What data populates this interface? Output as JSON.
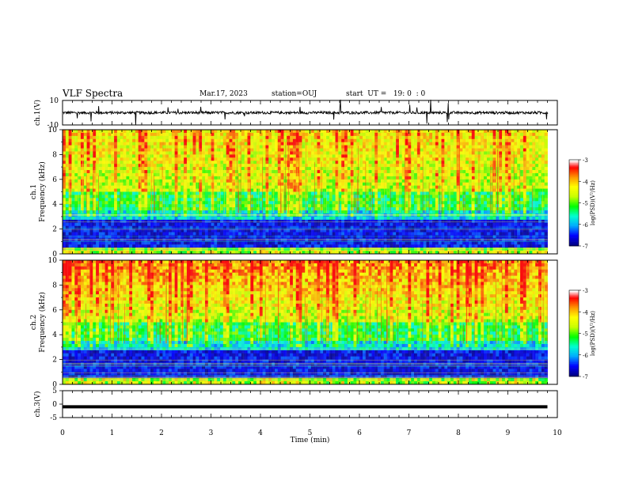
{
  "header": {
    "title": "VLF Spectra",
    "date": "Mar.17, 2023",
    "station": "station=OUJ",
    "start_ut": "start  UT =   19: 0  : 0"
  },
  "chart_data": [
    {
      "type": "line",
      "ylabel": "ch.1(V)",
      "ylim": [
        -10,
        10
      ],
      "yticks": [
        "10",
        "-10"
      ],
      "xlim": [
        0,
        10
      ],
      "baseline": 0,
      "color": "#000000"
    },
    {
      "type": "heatmap",
      "ylabel": "ch.1\nFrequency (kHz)",
      "ylabel_lines": [
        "ch.1",
        "Frequency (kHz)"
      ],
      "ylim": [
        0,
        10
      ],
      "yticks": [
        "0",
        "2",
        "4",
        "6",
        "8",
        "10"
      ],
      "xlim": [
        0,
        9.8
      ],
      "colorbar": {
        "label": "log(PSD)(V²/Hz)",
        "range": [
          -7,
          -3
        ],
        "ticks": [
          "-3",
          "-4",
          "-5",
          "-6",
          "-7"
        ],
        "colors": [
          "#000080",
          "#0000ff",
          "#00aaff",
          "#00ff80",
          "#ffff00",
          "#ff0000",
          "#ffffff"
        ]
      }
    },
    {
      "type": "heatmap",
      "ylabel": "ch.2\nFrequency (kHz)",
      "ylabel_lines": [
        "ch.2",
        "Frequency (kHz)"
      ],
      "ylim": [
        0,
        10
      ],
      "yticks": [
        "0",
        "2",
        "4",
        "6",
        "8",
        "10"
      ],
      "xlim": [
        0,
        9.8
      ],
      "colorbar": {
        "label": "log(PSD)(V²/Hz)",
        "range": [
          -7,
          -3
        ],
        "ticks": [
          "-3",
          "-4",
          "-5",
          "-6",
          "-7"
        ],
        "colors": [
          "#000080",
          "#0000ff",
          "#00aaff",
          "#00ff80",
          "#ffff00",
          "#ff0000",
          "#ffffff"
        ]
      }
    },
    {
      "type": "line",
      "ylabel": "ch.3(V)",
      "ylim": [
        -5,
        5
      ],
      "yticks": [
        "5",
        "0",
        "-5"
      ],
      "xlim": [
        0,
        10
      ],
      "values": [
        [
          0,
          -1
        ],
        [
          9.8,
          -1
        ]
      ],
      "color": "#000000"
    }
  ],
  "x_axis": {
    "label": "Time (min)",
    "ticks": [
      "0",
      "1",
      "2",
      "3",
      "4",
      "5",
      "6",
      "7",
      "8",
      "9",
      "10"
    ]
  }
}
